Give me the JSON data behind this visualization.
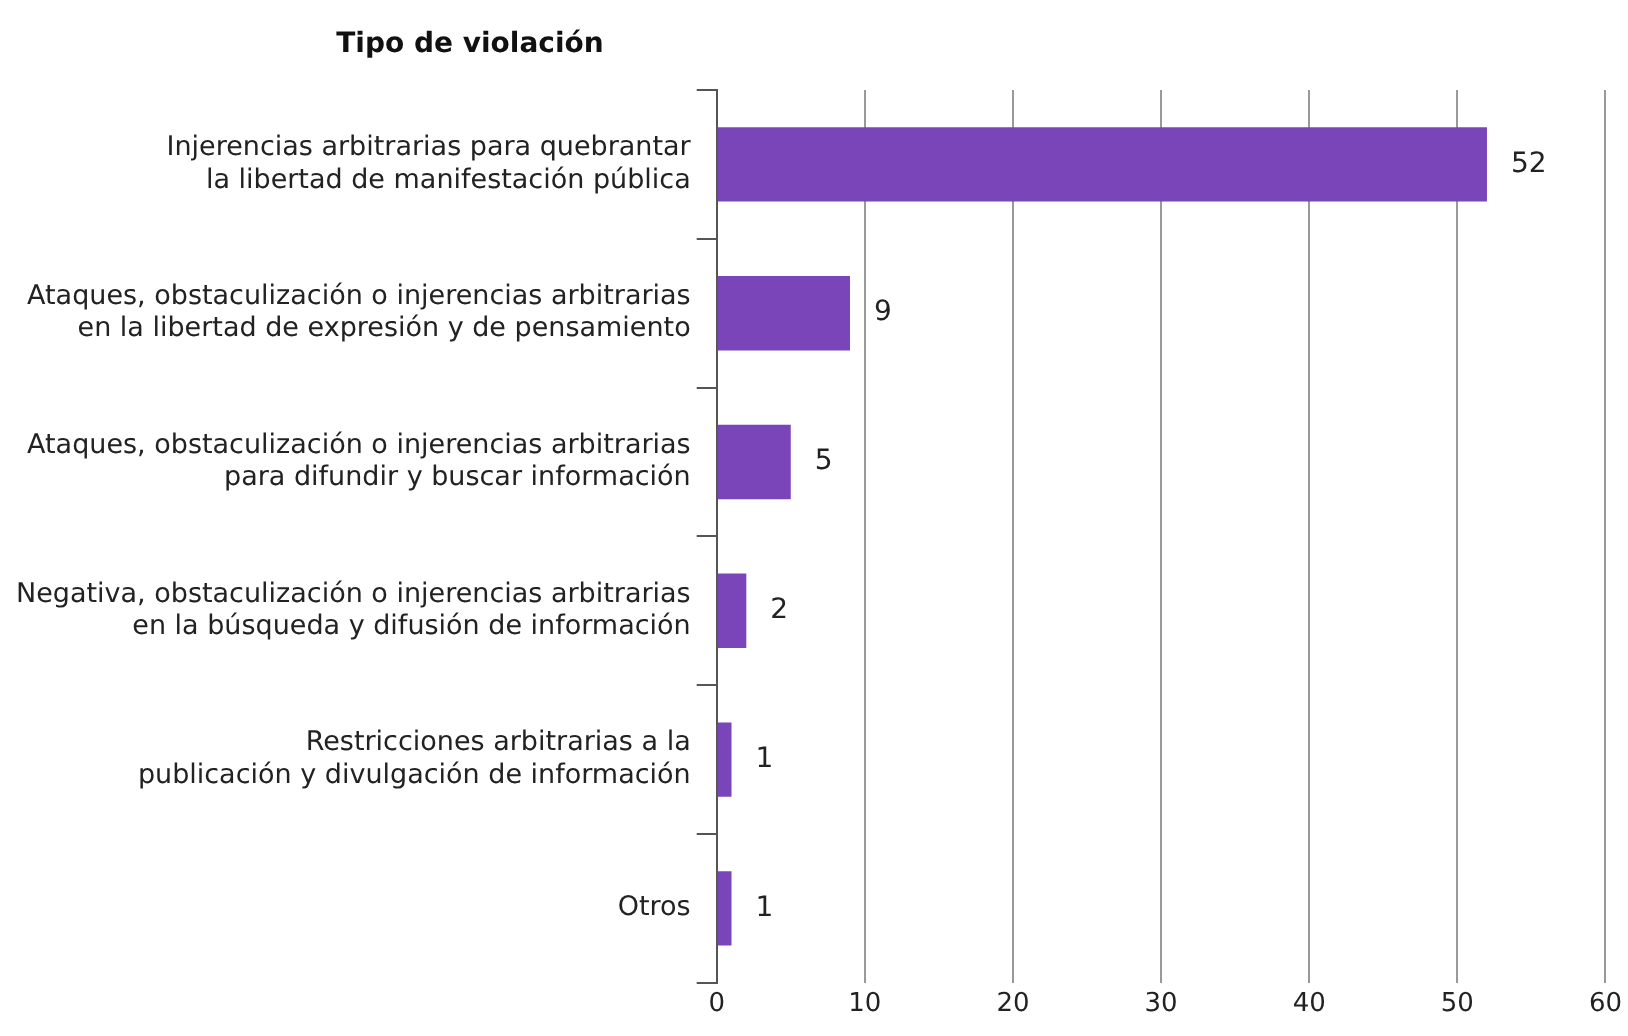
{
  "chart_data": {
    "type": "bar",
    "orientation": "horizontal",
    "ylabel": "Tipo de violación",
    "categories": [
      "Injerencias arbitrarias para quebrantar\nla libertad de manifestación pública",
      "Ataques, obstaculización o injerencias arbitrarias\nen la libertad de expresión y de pensamiento",
      "Ataques, obstaculización o injerencias arbitrarias\npara difundir y buscar información",
      "Negativa, obstaculización o injerencias arbitrarias\nen la búsqueda y difusión de información",
      "Restricciones arbitrarias a la\npublicación y divulgación de información",
      "Otros"
    ],
    "values": [
      52,
      9,
      5,
      2,
      1,
      1
    ],
    "color": "#7a45b8",
    "xlim": [
      0,
      60
    ],
    "xticks": [
      0,
      10,
      20,
      30,
      40,
      50,
      60
    ],
    "grid": "x",
    "data_labels": true
  }
}
